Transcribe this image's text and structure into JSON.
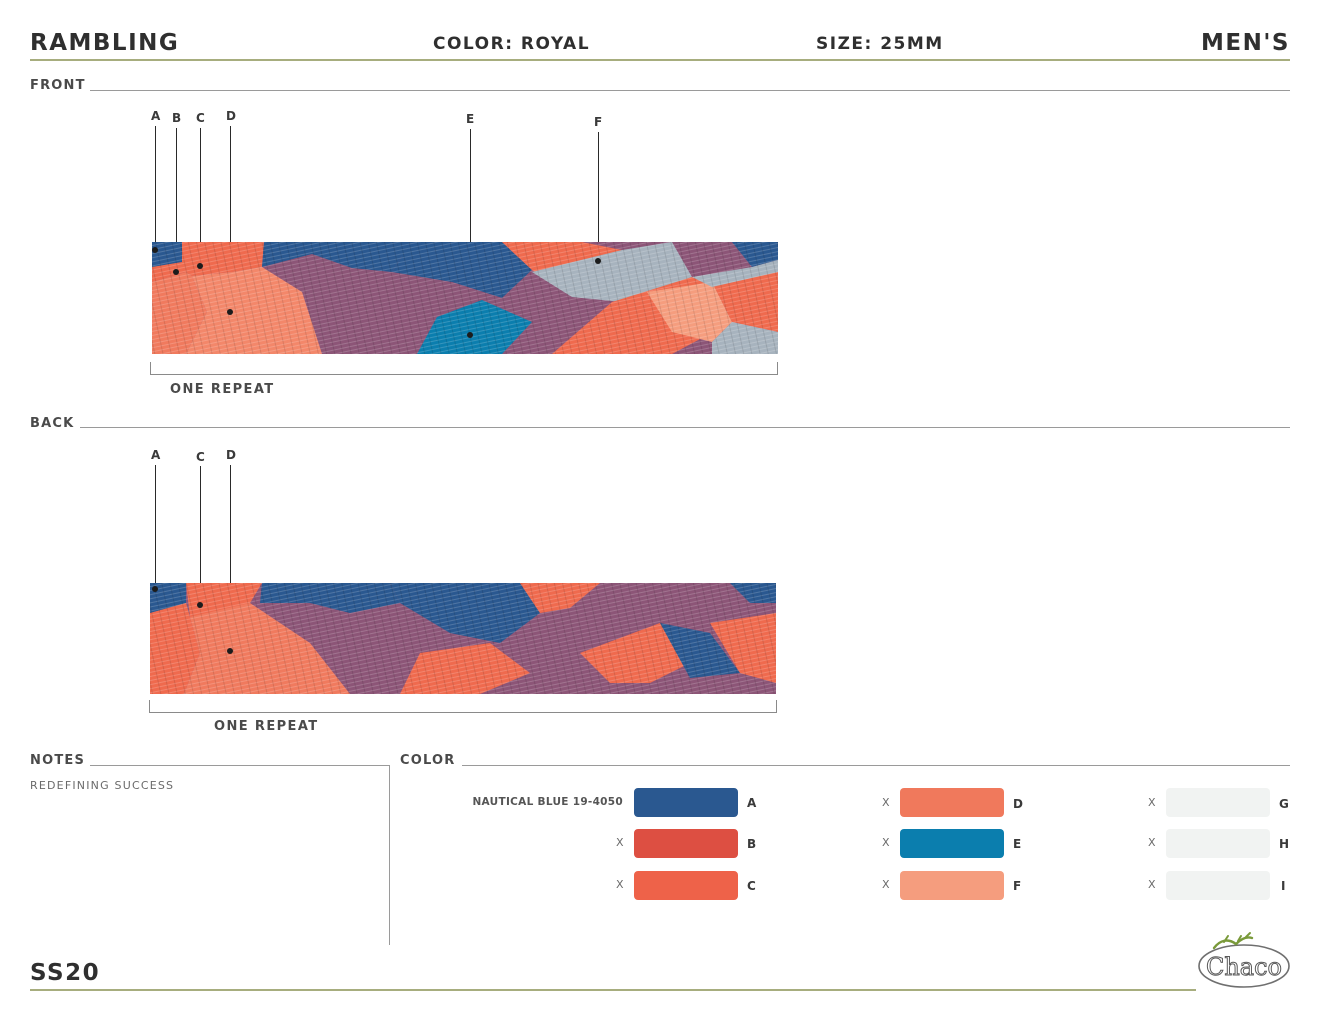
{
  "header": {
    "style_name": "RAMBLING",
    "color": "COLOR: ROYAL",
    "size": "SIZE: 25MM",
    "gender": "MEN'S"
  },
  "front": {
    "section_label": "FRONT",
    "callouts": [
      "A",
      "B",
      "C",
      "D",
      "E",
      "F"
    ],
    "repeat_label": "ONE REPEAT"
  },
  "back": {
    "section_label": "BACK",
    "callouts": [
      "A",
      "C",
      "D"
    ],
    "repeat_label": "ONE REPEAT"
  },
  "notes": {
    "section_label": "NOTES",
    "text": "REDEFINING SUCCESS"
  },
  "color_section": {
    "section_label": "COLOR",
    "swatches": [
      {
        "name": "NAUTICAL BLUE 19-4050",
        "letter": "A",
        "hex": "#2a5890"
      },
      {
        "name": "X",
        "letter": "B",
        "hex": "#dd4f42"
      },
      {
        "name": "X",
        "letter": "C",
        "hex": "#ee6249"
      },
      {
        "name": "X",
        "letter": "D",
        "hex": "#f0795c"
      },
      {
        "name": "X",
        "letter": "E",
        "hex": "#0b7eae"
      },
      {
        "name": "X",
        "letter": "F",
        "hex": "#f59d7e"
      },
      {
        "name": "X",
        "letter": "G",
        "hex": "#f1f3f2"
      },
      {
        "name": "X",
        "letter": "H",
        "hex": "#f1f3f2"
      },
      {
        "name": "X",
        "letter": "I",
        "hex": "#f1f3f2"
      }
    ]
  },
  "footer": {
    "season": "SS20",
    "logo_text": "Chaco"
  },
  "palette": {
    "blue": "#2a5890",
    "mauve": "#8c5577",
    "coral": "#ef6a4e",
    "salmon": "#f3876a",
    "teal": "#0b7eae",
    "gray": "#a7b3be",
    "peach": "#f59d7e",
    "green_rule": "#a7ad7e"
  }
}
